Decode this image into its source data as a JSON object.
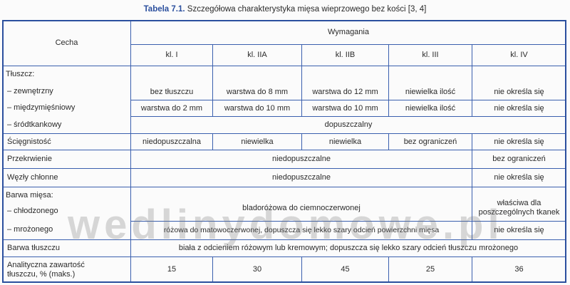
{
  "caption": {
    "label": "Tabela 7.1.",
    "text": "Szczegółowa charakterystyka mięsa wieprzowego bez kości [3, 4]"
  },
  "header": {
    "cecha": "Cecha",
    "wymagania": "Wymagania",
    "classes": [
      "kl. I",
      "kl. IIA",
      "kl. IIB",
      "kl. III",
      "kl. IV"
    ]
  },
  "tluszcz": {
    "label": "Tłuszcz:",
    "sub": [
      "– zewnętrzny",
      "– międzymięśniowy",
      "– śródtkankowy"
    ],
    "zewnetrzny": [
      "bez tłuszczu",
      "warstwa do 8 mm",
      "warstwa do 12 mm",
      "niewielka ilość",
      "nie określa się"
    ],
    "miedzymiesniowy": [
      "warstwa do 2 mm",
      "warstwa do 10 mm",
      "warstwa do 10 mm",
      "niewielka ilość",
      "nie określa się"
    ],
    "srodtkankowy": "dopuszczalny"
  },
  "sciegnistosc": {
    "label": "Ścięgnistość",
    "values": [
      "niedopuszczalna",
      "niewielka",
      "niewielka",
      "bez ograniczeń",
      "nie określa się"
    ]
  },
  "przekrwienie": {
    "label": "Przekrwienie",
    "value": "niedopuszczalne",
    "kl4": "bez ograniczeń"
  },
  "wezly": {
    "label": "Węzły chłonne",
    "value": "niedopuszczalne",
    "kl4": "nie określa się"
  },
  "barwa_miesa": {
    "label": "Barwa mięsa:",
    "sub": [
      "– chłodzonego",
      "– mrożonego"
    ],
    "chlodzonego": "bladoróżowa do ciemnoczerwonej",
    "chlodzonego_kl4": "właściwa dla poszczególnych tkanek",
    "mrozonego": "różowa do matowoczerwonej, dopuszcza się lekko szary odcień powierzchni mięsa",
    "mrozonego_kl4": "nie określa się"
  },
  "barwa_tluszczu": {
    "label": "Barwa tłuszczu",
    "value": "biała z odcieniem różowym lub kremowym; dopuszcza się lekko szary odcień tłuszczu mrożonego"
  },
  "zawartosc": {
    "label": "Analityczna zawartość tłuszczu, % (maks.)",
    "values": [
      "15",
      "30",
      "45",
      "25",
      "36"
    ]
  },
  "watermark": "wedlinydomowe.pl",
  "colors": {
    "border": "#3a5fae",
    "caption": "#2b4f9e"
  }
}
